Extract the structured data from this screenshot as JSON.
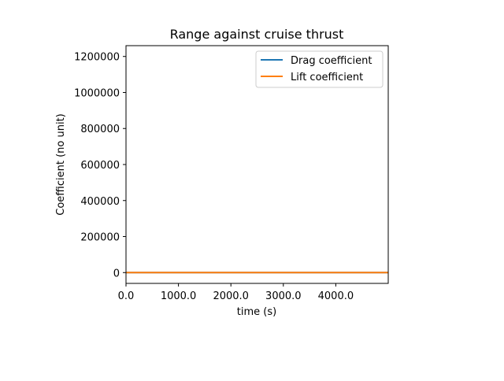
{
  "chart_data": {
    "type": "line",
    "title": "Range against cruise thrust",
    "xlabel": "time (s)",
    "ylabel": "Coefficient (no unit)",
    "xlim": [
      0,
      5000
    ],
    "ylim": [
      -60000,
      1260000
    ],
    "xticks": [
      0,
      1000,
      2000,
      3000,
      4000
    ],
    "xtick_labels": [
      "0.0",
      "1000.0",
      "2000.0",
      "3000.0",
      "4000.0"
    ],
    "yticks": [
      0,
      200000,
      400000,
      600000,
      800000,
      1000000,
      1200000
    ],
    "ytick_labels": [
      "0",
      "200000",
      "400000",
      "600000",
      "800000",
      "1000000",
      "1200000"
    ],
    "grid": false,
    "legend_position": "top-right",
    "series": [
      {
        "name": "Drag coefficient",
        "color": "#1f77b4",
        "x": [
          0,
          5000
        ],
        "y": [
          0,
          0
        ]
      },
      {
        "name": "Lift coefficient",
        "color": "#ff7f0e",
        "x": [
          0,
          5000
        ],
        "y": [
          0,
          0
        ]
      }
    ]
  }
}
